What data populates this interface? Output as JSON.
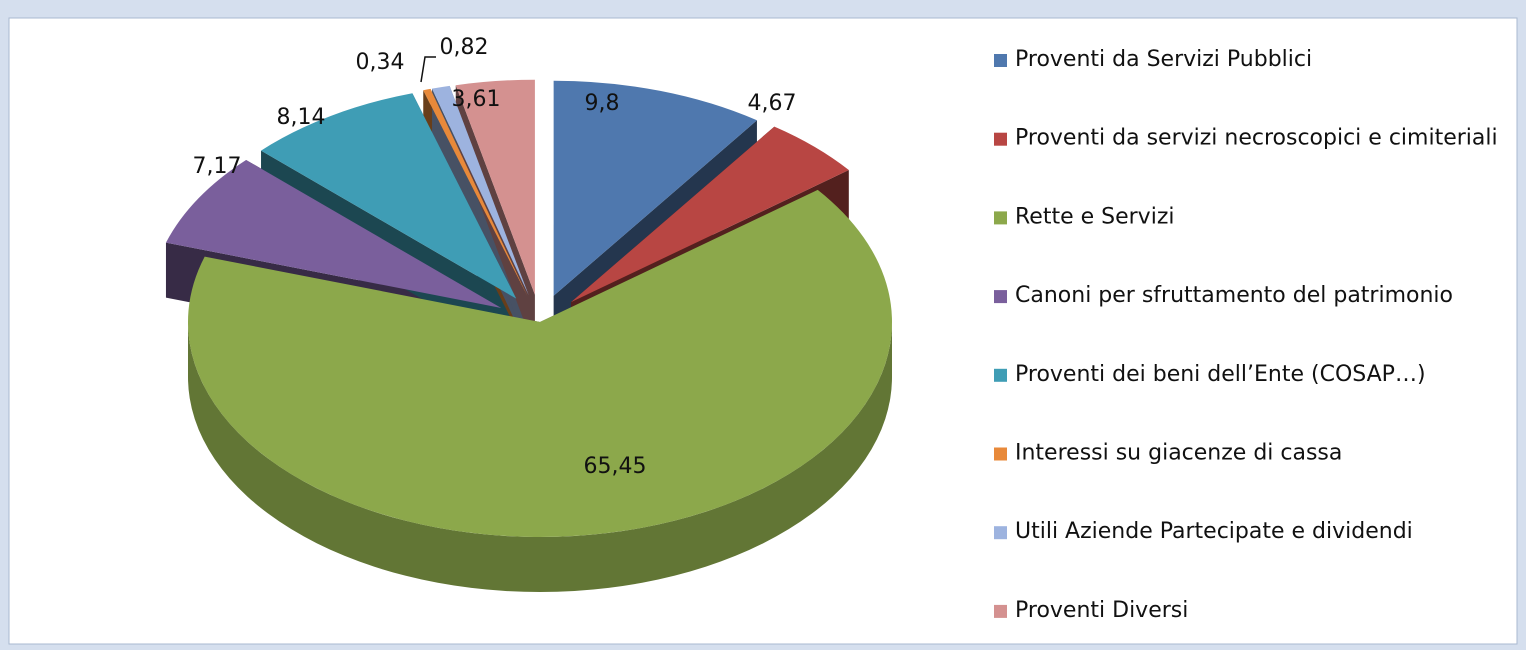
{
  "chart_data": {
    "type": "pie",
    "categories": [
      "Proventi da Servizi Pubblici",
      "Proventi da servizi necroscopici e cimiteriali",
      "Rette e Servizi",
      "Canoni per sfruttamento del patrimonio",
      "Proventi dei beni dell’Ente (COSAP…)",
      "Interessi su giacenze di cassa",
      "Utili Aziende Partecipate e dividendi",
      "Proventi  Diversi"
    ],
    "values": [
      9.8,
      4.67,
      65.45,
      7.17,
      8.14,
      0.34,
      0.82,
      3.61
    ],
    "value_labels": [
      "9,8",
      "4,67",
      "65,45",
      "7,17",
      "8,14",
      "0,34",
      "0,82",
      "3,61"
    ],
    "colors": [
      "#4f78ae",
      "#b84643",
      "#8ca84b",
      "#7a5f9c",
      "#3f9db5",
      "#e8893a",
      "#9db3df",
      "#d49190"
    ],
    "legend": "right"
  }
}
